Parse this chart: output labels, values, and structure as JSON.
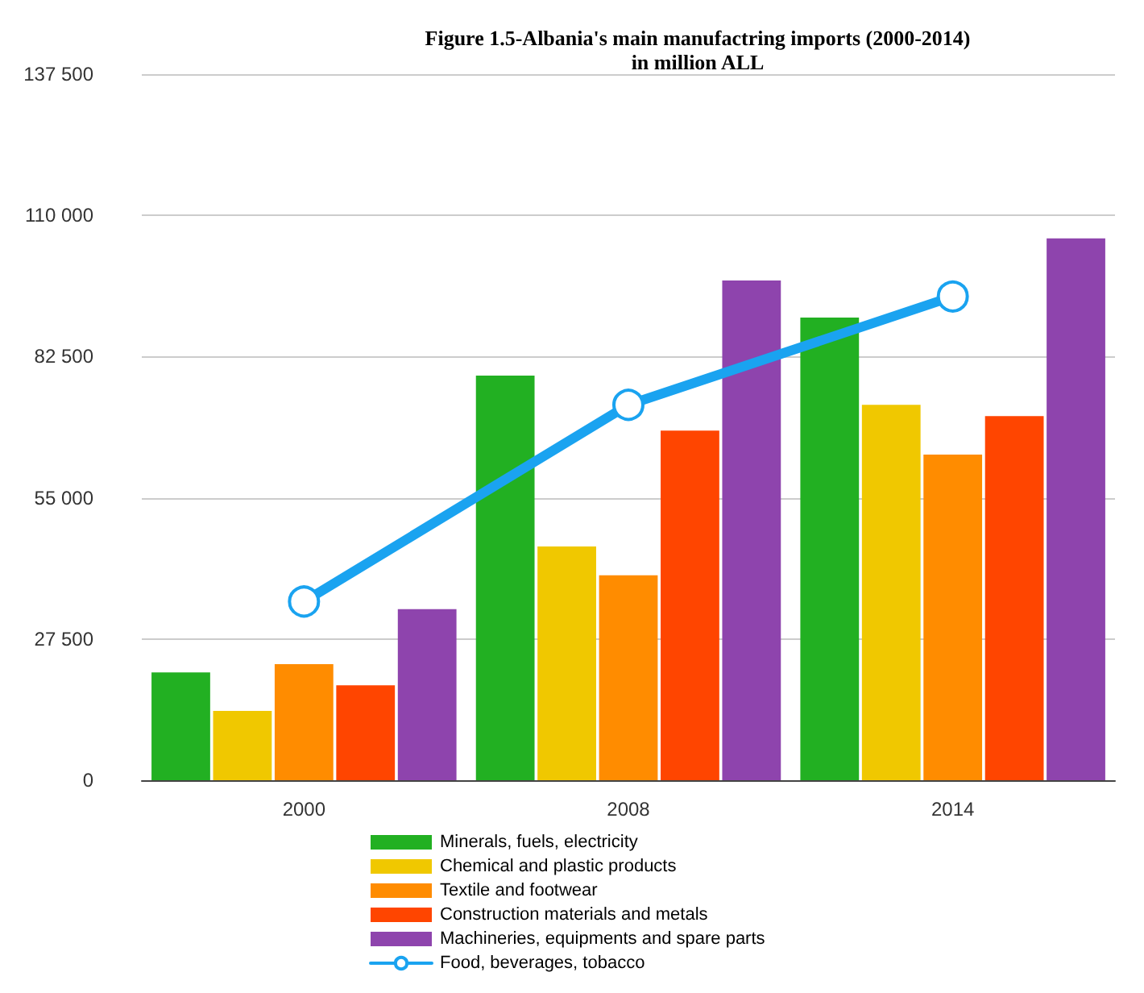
{
  "chart_data": {
    "type": "bar",
    "title": "Figure 1.5-Albania's main manufactring imports (2000-2014)",
    "subtitle": "in million ALL",
    "categories": [
      "2000",
      "2008",
      "2014"
    ],
    "series": [
      {
        "name": "Minerals, fuels, electricity",
        "color": "#22b022",
        "values": [
          21000,
          78800,
          90100
        ]
      },
      {
        "name": "Chemical and plastic products",
        "color": "#f0c800",
        "values": [
          13500,
          45500,
          73100
        ]
      },
      {
        "name": "Textile and footwear",
        "color": "#ff8c00",
        "values": [
          22600,
          39900,
          63400
        ]
      },
      {
        "name": "Construction materials and metals",
        "color": "#ff4500",
        "values": [
          18500,
          68100,
          70900
        ]
      },
      {
        "name": "Machineries, equipments and spare parts",
        "color": "#8e44ad",
        "values": [
          33300,
          97300,
          105500
        ]
      },
      {
        "name": "Food, beverages, tobacco",
        "color": "#1aa3f0",
        "type": "line",
        "values": [
          34800,
          73100,
          94200
        ]
      }
    ],
    "ylim": [
      0,
      137500
    ],
    "yticks": [
      0,
      {
        "value": 27500,
        "label": "27 500"
      },
      {
        "value": 55000,
        "label": "55 000"
      },
      {
        "value": 82500,
        "label": "82 500"
      },
      {
        "value": 110000,
        "label": "110 000"
      },
      {
        "value": 137500,
        "label": "137 500"
      }
    ],
    "grid": "y",
    "legend": "bottom",
    "marker": "circle"
  }
}
